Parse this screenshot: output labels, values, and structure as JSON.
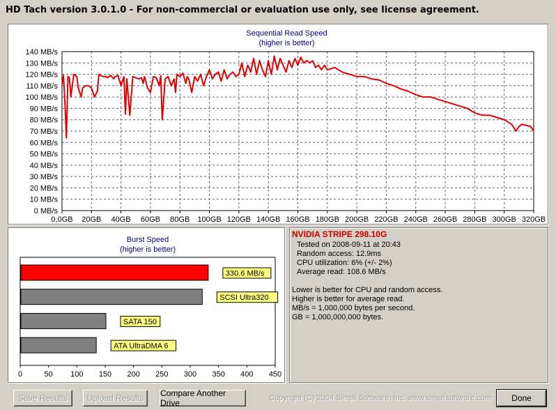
{
  "window": {
    "title": "HD Tach version 3.0.1.0  - For non-commercial or evaluation use only, see license agreement."
  },
  "colors": {
    "read_line": "#e00000",
    "burst_bar": "#ff0000",
    "compare_bar": "#808080",
    "label_bg": "#ffff80",
    "drive_name": "#cc0000"
  },
  "chart_data": [
    {
      "type": "line",
      "title": "Sequential Read Speed",
      "subtitle": "(higher is better)",
      "yunit": "MB/s",
      "ylim": [
        0,
        140
      ],
      "yticks": [
        "0 MB/s",
        "10 MB/s",
        "20 MB/s",
        "30 MB/s",
        "40 MB/s",
        "50 MB/s",
        "60 MB/s",
        "70 MB/s",
        "80 MB/s",
        "90 MB/s",
        "100 MB/s",
        "110 MB/s",
        "120 MB/s",
        "130 MB/s",
        "140 MB/s"
      ],
      "xlim": [
        0,
        320
      ],
      "xticks": [
        "0,0GB",
        "20GB",
        "40GB",
        "60GB",
        "80GB",
        "100GB",
        "120GB",
        "140GB",
        "160GB",
        "180GB",
        "200GB",
        "220GB",
        "240GB",
        "260GB",
        "280GB",
        "300GB",
        "320GB"
      ],
      "grid": true,
      "series": [
        {
          "x": [
            0,
            1,
            2,
            3,
            4,
            5,
            6,
            8,
            10,
            11,
            13,
            14,
            16,
            18,
            20,
            22,
            24,
            25,
            26,
            28,
            30,
            31,
            33,
            35,
            36,
            38,
            40,
            42,
            43,
            44,
            46,
            48,
            50,
            52,
            54,
            55,
            56,
            58,
            60,
            62,
            64,
            66,
            67,
            68,
            70,
            72,
            74,
            76,
            77,
            78,
            80,
            82,
            84,
            85,
            86,
            88,
            90,
            92,
            94,
            96,
            98,
            100,
            102,
            104,
            106,
            108,
            110,
            112,
            114,
            116,
            118,
            120,
            122,
            124,
            126,
            128,
            130,
            132,
            134,
            136,
            138,
            140,
            142,
            144,
            146,
            148,
            150,
            152,
            154,
            156,
            158,
            160,
            162,
            164,
            166,
            168,
            170,
            172,
            174,
            176,
            178,
            180,
            185,
            190,
            195,
            200,
            205,
            210,
            215,
            220,
            225,
            230,
            235,
            240,
            245,
            250,
            255,
            260,
            265,
            270,
            275,
            280,
            285,
            290,
            295,
            300,
            305,
            308,
            310,
            312,
            315,
            318,
            320
          ],
          "y": [
            111,
            119,
            95,
            64,
            118,
            117,
            100,
            120,
            118,
            108,
            100,
            108,
            110,
            110,
            108,
            100,
            105,
            120,
            119,
            118,
            118,
            117,
            119,
            116,
            118,
            119,
            110,
            118,
            85,
            116,
            84,
            118,
            117,
            116,
            117,
            112,
            118,
            108,
            104,
            118,
            117,
            110,
            119,
            80,
            116,
            118,
            110,
            116,
            104,
            120,
            118,
            121,
            112,
            118,
            116,
            104,
            118,
            114,
            120,
            110,
            118,
            124,
            116,
            120,
            122,
            114,
            124,
            116,
            120,
            122,
            118,
            120,
            130,
            118,
            128,
            122,
            134,
            120,
            132,
            124,
            118,
            132,
            120,
            136,
            124,
            134,
            128,
            122,
            132,
            126,
            134,
            128,
            135,
            130,
            132,
            130,
            132,
            126,
            128,
            124,
            128,
            124,
            126,
            122,
            120,
            118,
            118,
            116,
            115,
            112,
            110,
            107,
            105,
            102,
            100,
            100,
            98,
            96,
            94,
            92,
            90,
            86,
            84,
            84,
            82,
            80,
            76,
            70,
            74,
            76,
            75,
            74,
            70
          ]
        }
      ]
    },
    {
      "type": "bar",
      "title": "Burst Speed",
      "subtitle": "(higher is better)",
      "xlim": [
        0,
        450
      ],
      "xticks": [
        "0",
        "50",
        "100",
        "150",
        "200",
        "250",
        "300",
        "350",
        "400",
        "450"
      ],
      "grid": false,
      "series": [
        {
          "label": "330.6 MB/s",
          "value": 330.6,
          "highlight": true
        },
        {
          "label": "SCSI Ultra320",
          "value": 320,
          "highlight": false
        },
        {
          "label": "SATA 150",
          "value": 150,
          "highlight": false
        },
        {
          "label": "ATA UltraDMA 6",
          "value": 133,
          "highlight": false
        }
      ]
    }
  ],
  "info": {
    "drive_name": "NVIDIA  STRIPE  298.10G",
    "lines": [
      "Tested on 2008-09-11 at 20:43",
      "Random access: 12.9ms",
      "CPU utilization: 6% (+/- 2%)",
      "Average read: 108.6 MB/s"
    ],
    "notes": [
      "Lower is better for CPU and random access.",
      "Higher is better for average read.",
      "MB/s = 1,000,000 bytes per second.",
      "GB = 1,000,000,000 bytes."
    ]
  },
  "buttons": {
    "save": "Save Results",
    "upload": "Upload Results",
    "compare": "Compare Another Drive",
    "done": "Done"
  },
  "footer": {
    "copyright": "Copyright (C) 2004 Simpli Software, Inc. www.simplisoftware.com"
  }
}
